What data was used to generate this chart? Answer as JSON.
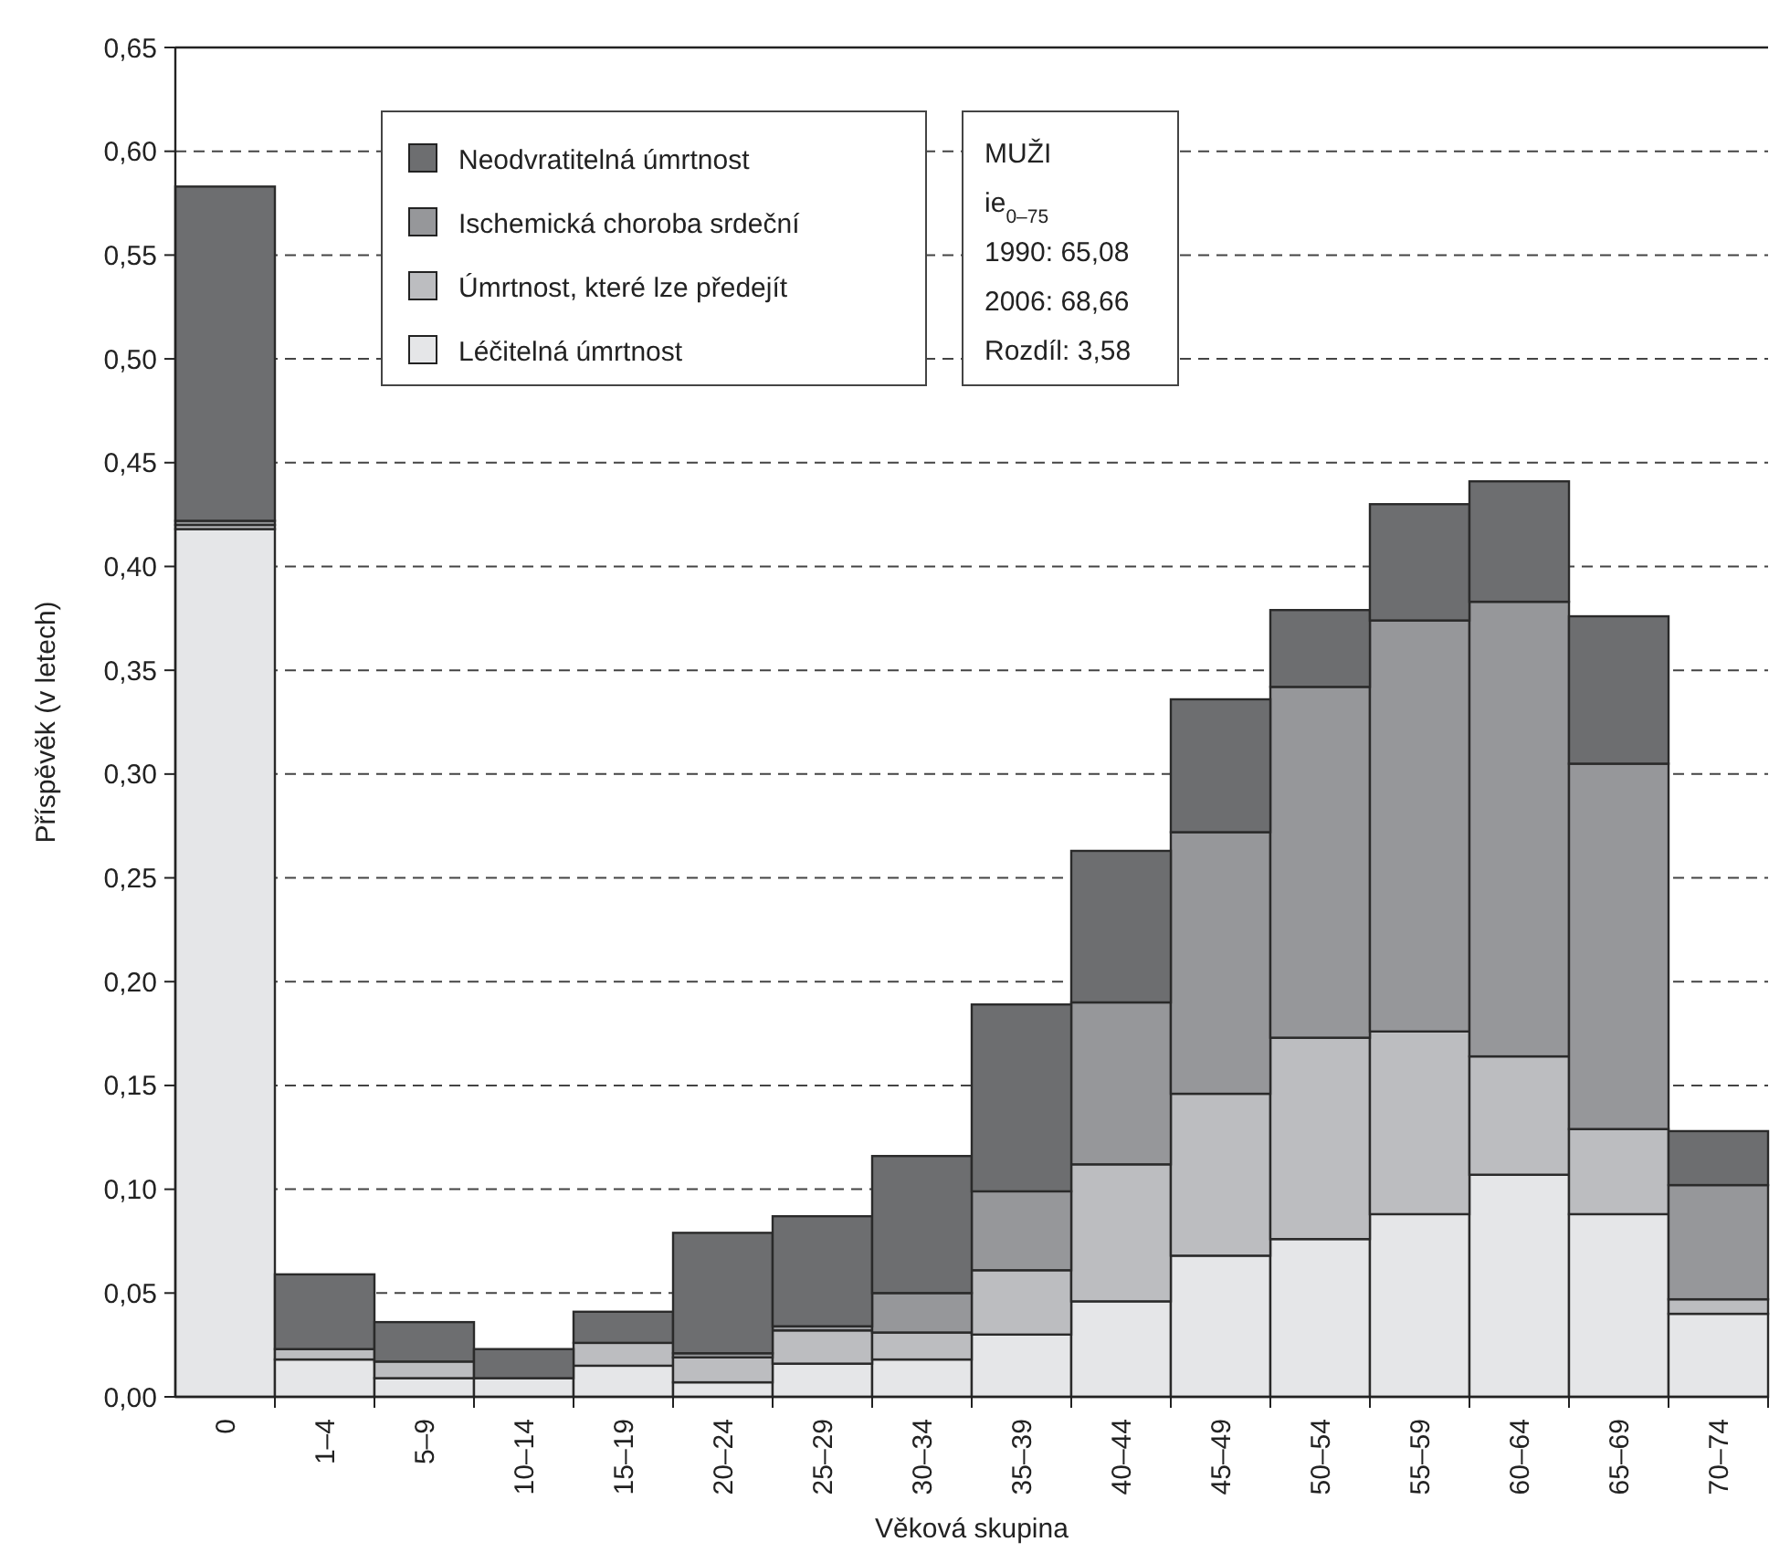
{
  "chart_data": {
    "type": "bar",
    "stacked": true,
    "xlabel": "Věková skupina",
    "ylabel": "Příspěvěk (v letech)",
    "categories": [
      "0",
      "1–4",
      "5–9",
      "10–14",
      "15–19",
      "20–24",
      "25–29",
      "30–34",
      "35–39",
      "40–44",
      "45–49",
      "50–54",
      "55–59",
      "60–64",
      "65–69",
      "70–74"
    ],
    "series": [
      {
        "name": "Léčitelná úmrtnost",
        "color": "#e5e6e8",
        "values": [
          0.418,
          0.018,
          0.009,
          0.009,
          0.015,
          0.007,
          0.016,
          0.018,
          0.03,
          0.046,
          0.068,
          0.076,
          0.088,
          0.107,
          0.088,
          0.04
        ]
      },
      {
        "name": "Úmrtnost, které lze předejít",
        "color": "#bcbdc0",
        "values": [
          0.002,
          0.005,
          0.008,
          0,
          0.011,
          0.012,
          0.016,
          0.013,
          0.031,
          0.066,
          0.078,
          0.097,
          0.088,
          0.057,
          0.041,
          0.007
        ]
      },
      {
        "name": "Ischemická choroba srdeční",
        "color": "#96979a",
        "values": [
          0.002,
          null,
          0,
          0,
          0,
          0.002,
          0.002,
          0.019,
          0.038,
          0.078,
          0.126,
          0.169,
          0.198,
          0.219,
          0.176,
          0.055
        ]
      },
      {
        "name": "Neodvratitelná úmrtnost",
        "color": "#6d6e70",
        "values": [
          0.161,
          0.036,
          0.019,
          0.014,
          0.015,
          0.058,
          0.053,
          0.066,
          0.09,
          0.073,
          0.064,
          0.037,
          0.056,
          0.058,
          0.071,
          0.026
        ]
      }
    ],
    "ylim": [
      0,
      0.65
    ],
    "yticks": [
      {
        "value": 0,
        "label": "0,00"
      },
      {
        "value": 0.05,
        "label": "0,05"
      },
      {
        "value": 0.1,
        "label": "0,10"
      },
      {
        "value": 0.15,
        "label": "0,15"
      },
      {
        "value": 0.2,
        "label": "0,20"
      },
      {
        "value": 0.25,
        "label": "0,25"
      },
      {
        "value": 0.3,
        "label": "0,30"
      },
      {
        "value": 0.35,
        "label": "0,35"
      },
      {
        "value": 0.4,
        "label": "0,40"
      },
      {
        "value": 0.45,
        "label": "0,45"
      },
      {
        "value": 0.5,
        "label": "0,50"
      },
      {
        "value": 0.55,
        "label": "0,55"
      },
      {
        "value": 0.6,
        "label": "0,60"
      },
      {
        "value": 0.65,
        "label": "0,65"
      }
    ],
    "grid": "y",
    "legend": "top left",
    "annotations": [
      "MUŽI",
      "ie$_{0–75}$",
      "1990: 65,08",
      "2006: 68,66",
      "Rozdíl: 3,58"
    ]
  }
}
